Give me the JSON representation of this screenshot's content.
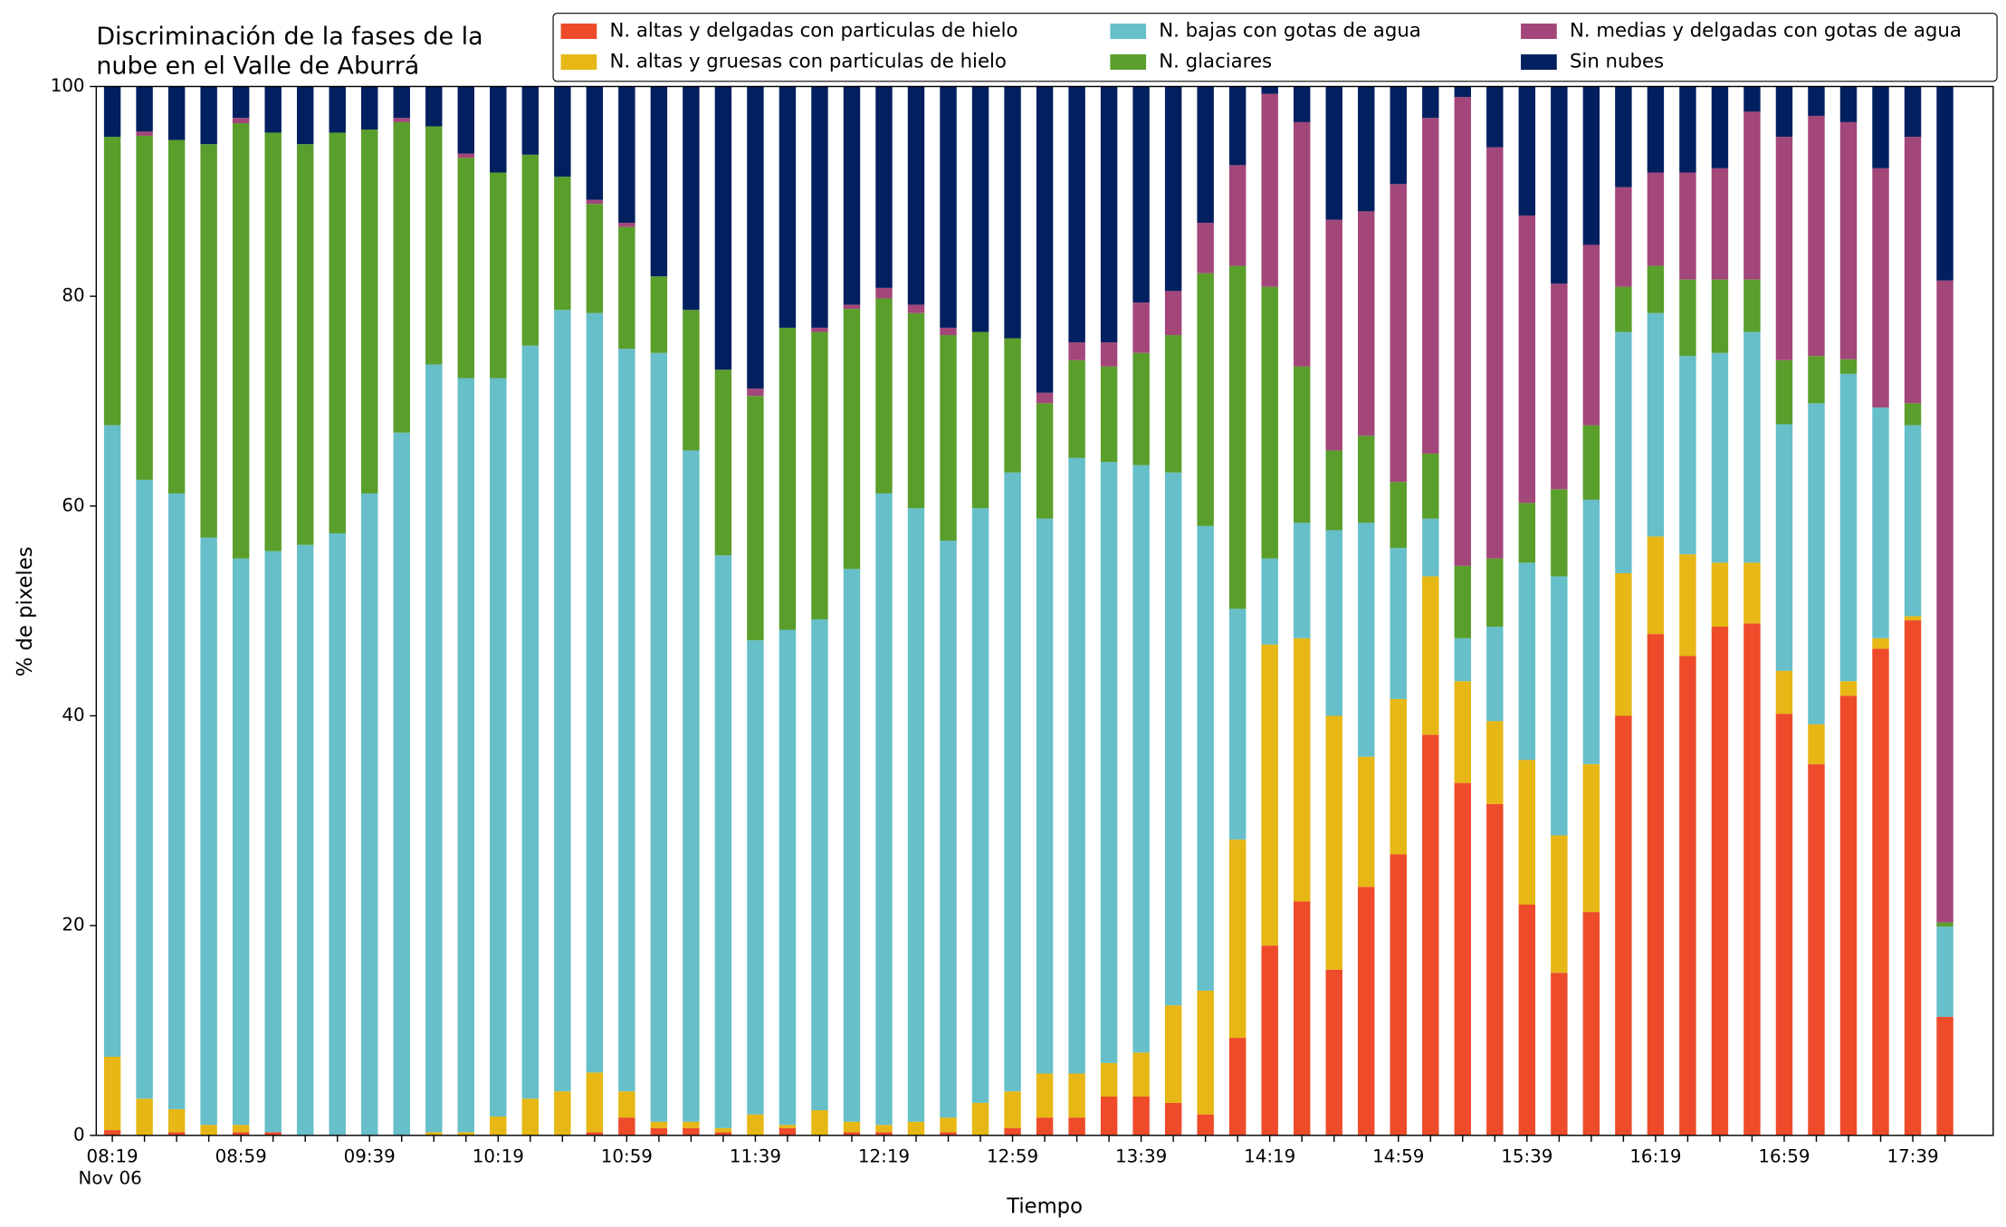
{
  "chart_data": {
    "type": "stacked_bar",
    "title": [
      "Discriminación de la fases de la",
      "nube en el Valle de Aburrá"
    ],
    "xlabel": "Tiempo",
    "ylabel": "% de pixeles",
    "x_sublabel": "Nov 06",
    "legend": "upper right",
    "categories": [
      "08:19",
      null,
      null,
      null,
      "08:59",
      null,
      null,
      null,
      "09:39",
      null,
      null,
      null,
      "10:19",
      null,
      null,
      null,
      "10:59",
      null,
      null,
      null,
      "11:39",
      null,
      null,
      null,
      "12:19",
      null,
      null,
      null,
      "12:59",
      null,
      null,
      null,
      "13:39",
      null,
      null,
      null,
      "14:19",
      null,
      null,
      null,
      "14:59",
      null,
      null,
      null,
      "15:39",
      null,
      null,
      null,
      "16:19",
      null,
      null,
      null,
      "16:59",
      null,
      null,
      null,
      "17:39",
      null
    ],
    "ylim": [
      0,
      100
    ],
    "yticks": [
      0,
      20,
      40,
      60,
      80,
      100
    ],
    "series": [
      {
        "name": "N. altas y delgadas con particulas de hielo",
        "color": "#ee4b2b",
        "values": [
          0.5,
          0,
          0.3,
          0,
          0.3,
          0.3,
          0,
          0,
          0,
          0,
          0,
          0,
          0,
          0,
          0,
          0.3,
          1.7,
          0.7,
          0.7,
          0.3,
          0,
          0.7,
          0,
          0.3,
          0.3,
          0,
          0.3,
          0,
          0.7,
          1.7,
          1.7,
          3.7,
          3.7,
          3.1,
          2.0,
          9.3,
          18.1,
          22.3,
          15.8,
          23.7,
          26.8,
          38.2,
          33.6,
          31.6,
          22.0,
          15.5,
          21.3,
          40.0,
          47.8,
          45.7,
          48.5,
          48.8,
          40.2,
          35.4,
          41.9,
          46.4,
          49.1,
          11.3
        ]
      },
      {
        "name": "N. altas y gruesas con particulas de hielo",
        "color": "#e6b715",
        "values": [
          7.0,
          3.5,
          2.2,
          1.0,
          0.7,
          0,
          0,
          0,
          0,
          0,
          0.3,
          0.3,
          1.8,
          3.5,
          4.2,
          5.7,
          2.5,
          0.6,
          0.6,
          0.4,
          2.0,
          0.3,
          2.4,
          1.0,
          0.7,
          1.3,
          1.4,
          3.1,
          3.5,
          4.2,
          4.2,
          3.2,
          4.2,
          9.3,
          11.8,
          18.9,
          28.7,
          25.1,
          24.2,
          12.4,
          14.8,
          15.1,
          9.7,
          7.9,
          13.8,
          13.1,
          14.1,
          13.6,
          9.3,
          9.7,
          6.1,
          5.8,
          4.1,
          3.8,
          1.4,
          1.0,
          0.4,
          0
        ]
      },
      {
        "name": "N. bajas con gotas de agua",
        "color": "#66bfc9",
        "values": [
          60.2,
          59.0,
          58.7,
          56.0,
          54.0,
          55.4,
          56.3,
          57.4,
          61.2,
          67.0,
          73.2,
          71.9,
          70.4,
          71.8,
          74.5,
          72.4,
          70.8,
          73.3,
          64.0,
          54.6,
          45.2,
          47.2,
          46.8,
          52.7,
          60.2,
          58.5,
          55.0,
          56.7,
          59.0,
          52.9,
          58.7,
          57.3,
          56.0,
          50.8,
          44.3,
          22.0,
          8.2,
          11.0,
          17.7,
          22.3,
          14.4,
          5.5,
          4.1,
          9.0,
          18.8,
          24.7,
          25.2,
          23.0,
          21.3,
          18.9,
          20.0,
          22.0,
          23.5,
          30.6,
          29.3,
          22.0,
          18.2,
          8.6
        ]
      },
      {
        "name": "N. glaciares",
        "color": "#5a9e2c",
        "values": [
          27.5,
          32.8,
          33.7,
          37.5,
          41.5,
          39.9,
          38.2,
          38.2,
          34.7,
          29.6,
          22.7,
          21.0,
          19.6,
          18.2,
          12.7,
          10.4,
          11.6,
          7.3,
          13.4,
          17.7,
          23.3,
          28.8,
          27.4,
          24.8,
          18.6,
          18.6,
          19.6,
          16.8,
          12.8,
          11.0,
          9.3,
          9.1,
          10.7,
          13.1,
          24.1,
          32.7,
          25.9,
          14.9,
          7.6,
          8.3,
          6.3,
          6.2,
          6.9,
          6.5,
          5.7,
          8.3,
          7.1,
          4.3,
          4.5,
          7.3,
          7.0,
          5.0,
          6.1,
          4.5,
          1.4,
          0,
          2.1,
          0.4
        ]
      },
      {
        "name": "N. medias y delgadas con gotas de agua",
        "color": "#a3467a",
        "values": [
          0,
          0.4,
          0,
          0,
          0.5,
          0,
          0,
          0,
          0,
          0.4,
          0,
          0.4,
          0,
          0,
          0,
          0.4,
          0.4,
          0,
          0,
          0,
          0.7,
          0,
          0.4,
          0.4,
          1.0,
          0.8,
          0.7,
          0,
          0,
          1.0,
          1.7,
          2.3,
          4.8,
          4.2,
          4.8,
          9.6,
          18.4,
          23.3,
          22.0,
          21.4,
          28.4,
          32.0,
          44.7,
          39.2,
          27.4,
          19.6,
          17.2,
          9.5,
          8.9,
          10.2,
          10.6,
          16.0,
          21.3,
          22.9,
          22.6,
          22.8,
          25.4,
          61.2
        ]
      },
      {
        "name": "Sin nubes",
        "color": "#021f60",
        "values": [
          4.8,
          4.3,
          5.1,
          5.5,
          3.0,
          4.4,
          5.5,
          4.4,
          4.1,
          3.0,
          3.8,
          6.4,
          8.2,
          6.5,
          8.6,
          10.8,
          13.0,
          18.1,
          21.3,
          27.0,
          28.8,
          23.0,
          23.0,
          20.8,
          19.2,
          20.8,
          23.0,
          23.4,
          24.0,
          29.2,
          24.4,
          24.4,
          20.6,
          19.5,
          13.0,
          7.5,
          0.7,
          3.4,
          12.7,
          11.9,
          9.3,
          3.0,
          1.0,
          5.8,
          12.3,
          18.8,
          15.1,
          9.6,
          8.2,
          8.2,
          7.8,
          2.4,
          4.8,
          2.8,
          3.4,
          7.8,
          4.8,
          18.5
        ]
      }
    ]
  }
}
